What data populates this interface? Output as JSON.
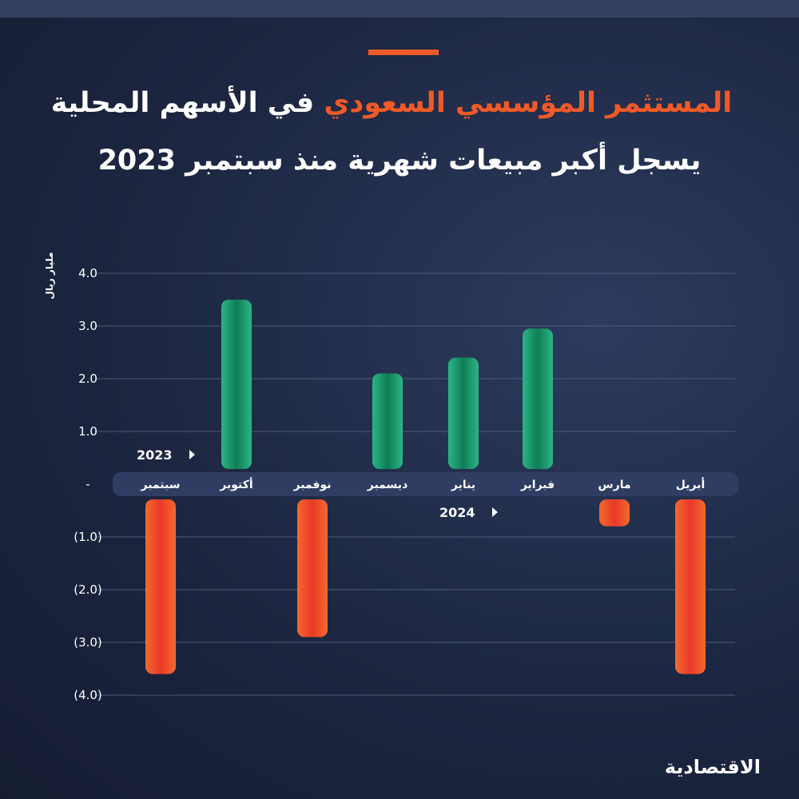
{
  "title": {
    "line1_highlight": "المستثمر المؤسسي السعودي",
    "line1_rest": "في الأسهم المحلية",
    "line2": "يسجل أكبر مبيعات شهرية منذ سبتمبر 2023"
  },
  "logo_text": "الاقتصادية",
  "colors": {
    "background": "#1c2640",
    "accent": "#ef5a28",
    "positive": "#1f9e73",
    "negative": "#ef5a28",
    "label_band": "#2f3d63"
  },
  "chart_data": {
    "type": "bar",
    "categories": [
      "سبتمبر",
      "أكتوبر",
      "نوفمبر",
      "ديسمبر",
      "يناير",
      "فبراير",
      "مارس",
      "أبريل"
    ],
    "values": [
      -3.6,
      3.5,
      -2.9,
      2.1,
      2.4,
      2.95,
      -0.8,
      -3.6
    ],
    "ylabel": "مليار ريال",
    "ylim": [
      -4,
      4
    ],
    "yticks": [
      4,
      3,
      2,
      1,
      0,
      -1,
      -2,
      -3,
      -4
    ],
    "ytick_labels": [
      "4.0",
      "3.0",
      "2.0",
      "1.0",
      "-",
      "(1.0)",
      "(2.0)",
      "(3.0)",
      "(4.0)"
    ],
    "year_labels": [
      {
        "text": "2023",
        "from": 0,
        "to": 3
      },
      {
        "text": "2024",
        "from": 4,
        "to": 7
      }
    ],
    "grid": true,
    "legend": "none"
  }
}
